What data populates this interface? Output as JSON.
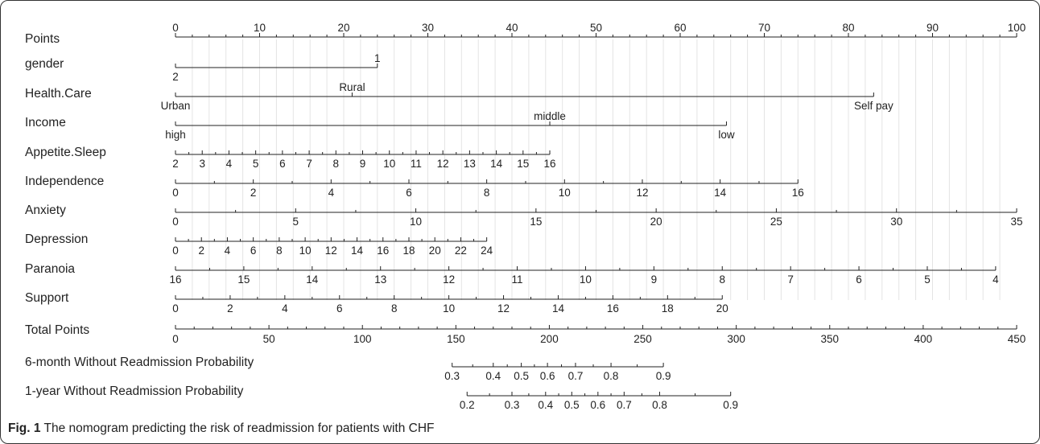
{
  "figure": {
    "caption_label": "Fig. 1",
    "caption_text": " The nomogram predicting the risk of readmission for patients with CHF"
  },
  "chart_data": {
    "type": "nomogram",
    "points_scale": {
      "label": "Points",
      "ticks": [
        0,
        10,
        20,
        30,
        40,
        50,
        60,
        70,
        80,
        90,
        100
      ]
    },
    "variables": [
      {
        "id": "gender",
        "label": "gender",
        "levels": [
          {
            "label": "2",
            "points": 0,
            "side": "below"
          },
          {
            "label": "1",
            "points": 24,
            "side": "above"
          }
        ]
      },
      {
        "id": "healthcare",
        "label": "Health.Care",
        "levels": [
          {
            "label": "Urban",
            "points": 0,
            "side": "below"
          },
          {
            "label": "Rural",
            "points": 21,
            "side": "above"
          },
          {
            "label": "Self pay",
            "points": 83,
            "side": "below"
          }
        ]
      },
      {
        "id": "income",
        "label": "Income",
        "levels": [
          {
            "label": "high",
            "points": 0,
            "side": "below"
          },
          {
            "label": "middle",
            "points": 44.5,
            "side": "above"
          },
          {
            "label": "low",
            "points": 65.5,
            "side": "below"
          }
        ]
      },
      {
        "id": "appetite",
        "label": "Appetite.Sleep",
        "values": [
          2,
          3,
          4,
          5,
          6,
          7,
          8,
          9,
          10,
          11,
          12,
          13,
          14,
          15,
          16
        ],
        "points_range": [
          0,
          44.5
        ]
      },
      {
        "id": "independence",
        "label": "Independence",
        "values": [
          0,
          2,
          4,
          6,
          8,
          10,
          12,
          14,
          16
        ],
        "points_range": [
          0,
          74
        ]
      },
      {
        "id": "anxiety",
        "label": "Anxiety",
        "values": [
          0,
          5,
          10,
          15,
          20,
          25,
          30,
          35
        ],
        "points_range": [
          0,
          100
        ]
      },
      {
        "id": "depression",
        "label": "Depression",
        "values": [
          0,
          2,
          4,
          6,
          8,
          10,
          12,
          14,
          16,
          18,
          20,
          22,
          24
        ],
        "points_range": [
          0,
          37
        ]
      },
      {
        "id": "paranoia",
        "label": "Paranoia",
        "values": [
          16,
          15,
          14,
          13,
          12,
          11,
          10,
          9,
          8,
          7,
          6,
          5,
          4
        ],
        "points_range": [
          0,
          97.5
        ]
      },
      {
        "id": "support",
        "label": "Support",
        "values": [
          0,
          2,
          4,
          6,
          8,
          10,
          12,
          14,
          16,
          18,
          20
        ],
        "points_range": [
          0,
          65
        ]
      }
    ],
    "total_points": {
      "label": "Total Points",
      "ticks": [
        0,
        50,
        100,
        150,
        200,
        250,
        300,
        350,
        400,
        450
      ],
      "range": [
        0,
        450
      ]
    },
    "outcomes": [
      {
        "id": "six_month",
        "label": "6-month Without Readmission Probability",
        "ticks": [
          {
            "label": "0.3",
            "total": 148
          },
          {
            "label": "0.4",
            "total": 170
          },
          {
            "label": "0.5",
            "total": 185
          },
          {
            "label": "0.6",
            "total": 199
          },
          {
            "label": "0.7",
            "total": 214
          },
          {
            "label": "0.8",
            "total": 233
          },
          {
            "label": "0.9",
            "total": 261
          }
        ]
      },
      {
        "id": "one_year",
        "label": "1-year Without Readmission Probability",
        "ticks": [
          {
            "label": "0.2",
            "total": 156
          },
          {
            "label": "0.3",
            "total": 180
          },
          {
            "label": "0.4",
            "total": 198
          },
          {
            "label": "0.5",
            "total": 212
          },
          {
            "label": "0.6",
            "total": 226
          },
          {
            "label": "0.7",
            "total": 240
          },
          {
            "label": "0.8",
            "total": 259
          },
          {
            "label": "0.9",
            "total": 297
          }
        ]
      }
    ]
  }
}
